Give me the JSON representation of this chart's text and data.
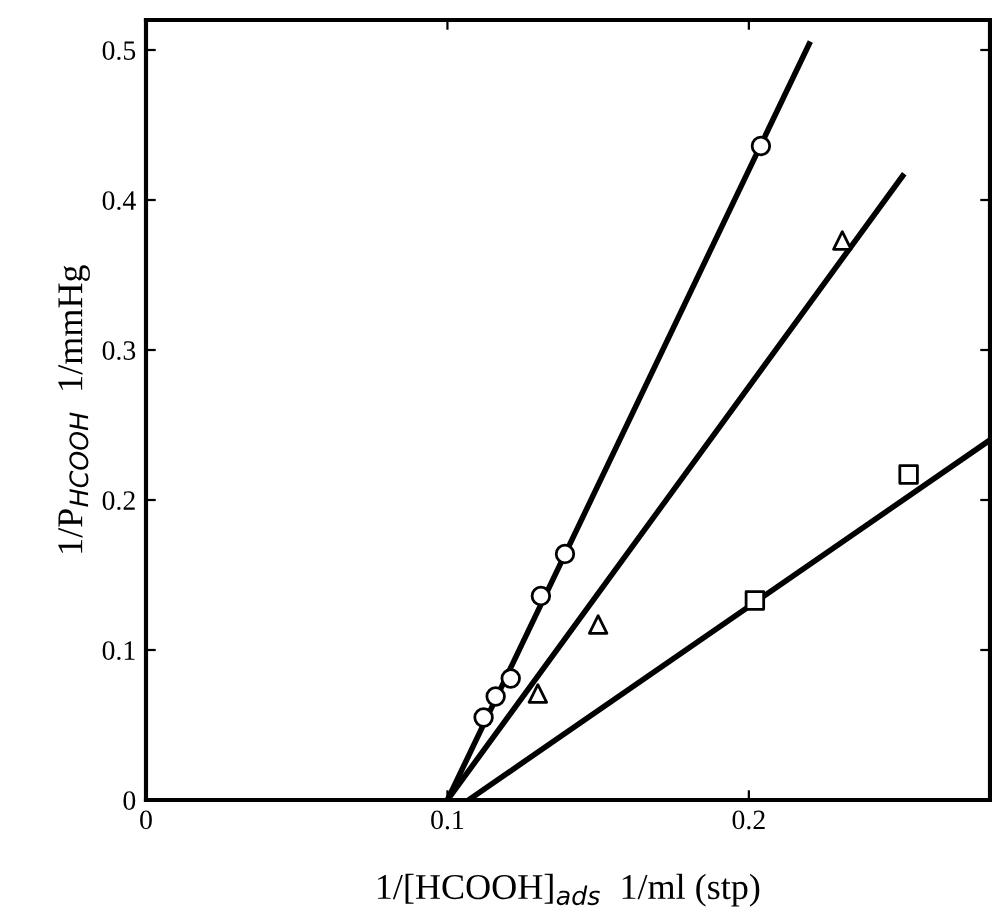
{
  "chart_data": {
    "type": "scatter",
    "xlabel": "1/[HCOOH]$_{ads}$  1/ml (stp)",
    "ylabel": "1/P$_{HCOOH}$  1/mmHg",
    "xlim": [
      0,
      0.28
    ],
    "ylim": [
      0,
      0.52
    ],
    "xticks": [
      0,
      0.1,
      0.2
    ],
    "yticks": [
      0,
      0.1,
      0.2,
      0.3,
      0.4,
      0.5
    ],
    "grid": false,
    "legend": false,
    "series": [
      {
        "marker": "circle",
        "color": "#000000",
        "x": [
          0.112,
          0.116,
          0.121,
          0.131,
          0.139,
          0.204
        ],
        "values": [
          0.055,
          0.069,
          0.081,
          0.136,
          0.164,
          0.436
        ]
      },
      {
        "marker": "triangle",
        "color": "#000000",
        "x": [
          0.13,
          0.15,
          0.231
        ],
        "values": [
          0.071,
          0.117,
          0.373
        ]
      },
      {
        "marker": "square",
        "color": "#000000",
        "x": [
          0.202,
          0.253
        ],
        "values": [
          0.133,
          0.217
        ]
      },
      {
        "type": "line",
        "marker": "none",
        "color": "#000000",
        "x": [
          0.1,
          0.22
        ],
        "values": [
          0,
          0.504
        ]
      },
      {
        "type": "line",
        "marker": "none",
        "color": "#000000",
        "x": [
          0.1,
          0.251
        ],
        "values": [
          0,
          0.416
        ]
      },
      {
        "type": "line",
        "marker": "none",
        "color": "#000000",
        "x": [
          0.107,
          0.28
        ],
        "values": [
          0,
          0.24
        ]
      }
    ]
  }
}
